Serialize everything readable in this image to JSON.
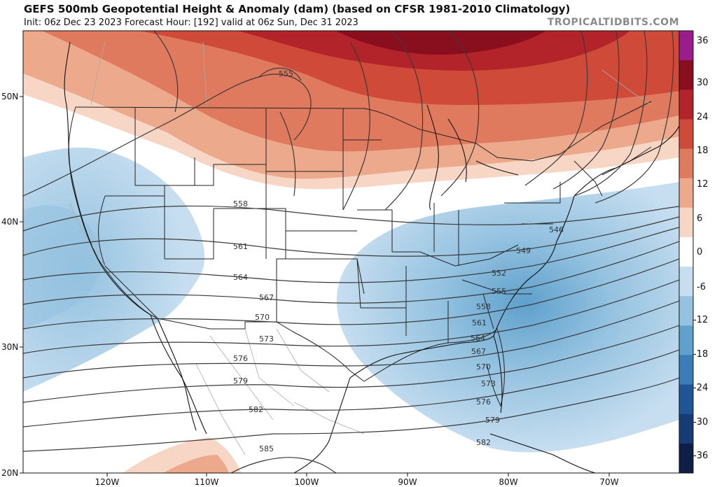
{
  "header": {
    "title": "GEFS 500mb Geopotential Height & Anomaly (dam) (based on CFSR 1981-2010 Climatology)",
    "subtitle": "Init: 06z Dec 23 2023   Forecast Hour: [192]   valid at 06z Sun, Dec 31 2023",
    "source": "TROPICALTIDBITS.COM"
  },
  "axes": {
    "latitude_labels": [
      "50N",
      "40N",
      "30N",
      "20N"
    ],
    "longitude_labels": [
      "120W",
      "110W",
      "100W",
      "90W",
      "80W",
      "70W"
    ]
  },
  "colorbar": {
    "labels": [
      "36",
      "30",
      "24",
      "18",
      "12",
      "6",
      "0",
      "-6",
      "-12",
      "-18",
      "-24",
      "-30",
      "-36"
    ],
    "colors": [
      "#9b1d8c",
      "#8a0f1e",
      "#b3232a",
      "#cf4a38",
      "#df7a5f",
      "#eca98c",
      "#f7d6c6",
      "#ffffff",
      "#c7def0",
      "#94c2e0",
      "#5fa0cc",
      "#3a7db8",
      "#1f5597",
      "#173c75",
      "#0f1e47"
    ]
  },
  "height_contours": {
    "units": "dam",
    "labels": [
      "546",
      "549",
      "552",
      "555",
      "555",
      "558",
      "558",
      "561",
      "561",
      "564",
      "564",
      "567",
      "567",
      "570",
      "570",
      "573",
      "573",
      "576",
      "576",
      "579",
      "579",
      "582",
      "582",
      "585"
    ]
  }
}
